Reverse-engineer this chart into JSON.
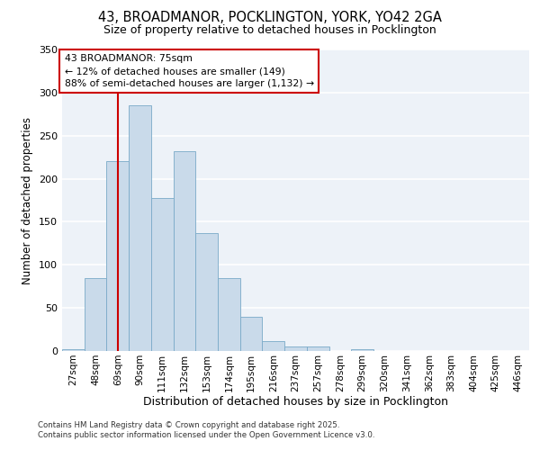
{
  "title_line1": "43, BROADMANOR, POCKLINGTON, YORK, YO42 2GA",
  "title_line2": "Size of property relative to detached houses in Pocklington",
  "xlabel": "Distribution of detached houses by size in Pocklington",
  "ylabel": "Number of detached properties",
  "categories": [
    "27sqm",
    "48sqm",
    "69sqm",
    "90sqm",
    "111sqm",
    "132sqm",
    "153sqm",
    "174sqm",
    "195sqm",
    "216sqm",
    "237sqm",
    "257sqm",
    "278sqm",
    "299sqm",
    "320sqm",
    "341sqm",
    "362sqm",
    "383sqm",
    "404sqm",
    "425sqm",
    "446sqm"
  ],
  "values": [
    2,
    85,
    220,
    285,
    178,
    232,
    137,
    85,
    40,
    12,
    5,
    5,
    0,
    2,
    0,
    0,
    0,
    0,
    0,
    0,
    0
  ],
  "bar_color": "#c9daea",
  "bar_edge_color": "#7aaac8",
  "vline_x": 2.0,
  "vline_color": "#cc0000",
  "annotation_text": "43 BROADMANOR: 75sqm\n← 12% of detached houses are smaller (149)\n88% of semi-detached houses are larger (1,132) →",
  "annotation_box_color": "#ffffff",
  "annotation_box_edge": "#cc0000",
  "ylim": [
    0,
    350
  ],
  "yticks": [
    0,
    50,
    100,
    150,
    200,
    250,
    300,
    350
  ],
  "background_color": "#edf2f8",
  "grid_color": "#ffffff",
  "footer_line1": "Contains HM Land Registry data © Crown copyright and database right 2025.",
  "footer_line2": "Contains public sector information licensed under the Open Government Licence v3.0."
}
